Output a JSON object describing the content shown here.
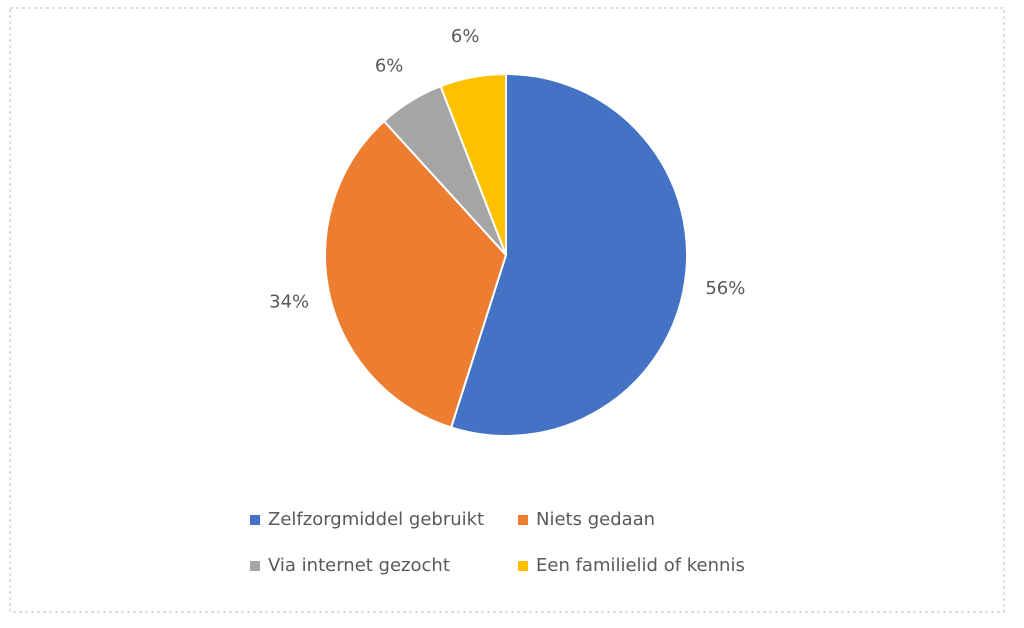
{
  "chart_data": {
    "type": "pie",
    "categories": [
      "Zelfzorgmiddel gebruikt",
      "Niets gedaan",
      "Via internet gezocht",
      "Een familielid of kennis"
    ],
    "values": [
      56,
      34,
      6,
      6
    ],
    "value_labels": [
      "56%",
      "34%",
      "6%",
      "6%"
    ],
    "colors": [
      "#4472c4",
      "#ed7d31",
      "#a5a5a5",
      "#ffc000"
    ]
  }
}
